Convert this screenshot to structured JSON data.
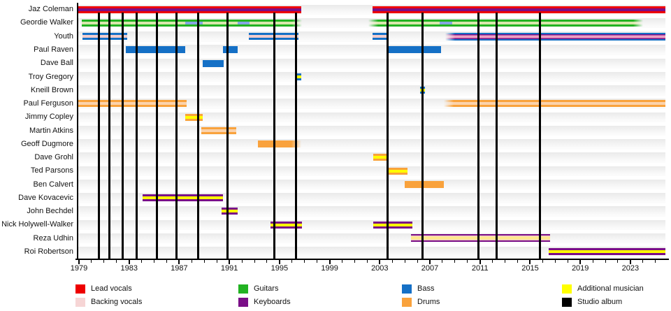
{
  "chart_data": {
    "type": "timeline",
    "subject": "Band members timeline",
    "axis": {
      "range": [
        1978.85,
        2025.8
      ],
      "major_ticks": [
        1979,
        1983,
        1987,
        1991,
        1995,
        1999,
        2003,
        2007,
        2011,
        2015,
        2019,
        2023
      ],
      "minor_tick_interval": 1
    },
    "legend": {
      "items": [
        {
          "key": "lead",
          "label": "Lead vocals",
          "color": "#ee0000"
        },
        {
          "key": "backing",
          "label": "Backing vocals",
          "color": "#f6d5d5"
        },
        {
          "key": "guitars",
          "label": "Guitars",
          "color": "#22b222"
        },
        {
          "key": "keyboards",
          "label": "Keyboards",
          "color": "#7a0e87"
        },
        {
          "key": "bass",
          "label": "Bass",
          "color": "#1570c6"
        },
        {
          "key": "drums",
          "label": "Drums",
          "color": "#f9a23c"
        },
        {
          "key": "additional",
          "label": "Additional musician",
          "color": "#ffff00"
        },
        {
          "key": "album",
          "label": "Studio album",
          "color": "#000000"
        }
      ]
    },
    "albums": [
      1980.6,
      1981.4,
      1982.5,
      1983.6,
      1985.2,
      1986.8,
      1988.5,
      1990.85,
      1994.6,
      1996.3,
      2003.6,
      2006.4,
      2010.85,
      2012.3,
      2015.8
    ],
    "members": [
      {
        "name": "Jaz Coleman",
        "segments": [
          {
            "start": 1978.85,
            "end": 1996.75,
            "roles": [
              "lead",
              "keyboards"
            ]
          },
          {
            "start": 2002.45,
            "end": 2025.8,
            "roles": [
              "lead",
              "keyboards"
            ]
          }
        ]
      },
      {
        "name": "Geordie Walker",
        "segments": [
          {
            "start": 1979.2,
            "end": 1996.8,
            "roles": [
              "guitars",
              "backing"
            ],
            "fade_right": true
          },
          {
            "start": 2002.1,
            "end": 2024.0,
            "roles": [
              "guitars",
              "backing"
            ],
            "fade_left": true,
            "fade_right": true
          }
        ],
        "overlays": [
          {
            "start": 1987.5,
            "end": 1988.9,
            "role": "bass"
          },
          {
            "start": 1991.65,
            "end": 1992.6,
            "role": "bass"
          },
          {
            "start": 2007.8,
            "end": 2008.8,
            "role": "bass"
          }
        ]
      },
      {
        "name": "Youth",
        "segments": [
          {
            "start": 1979.3,
            "end": 1982.85,
            "roles": [
              "bass",
              "backing"
            ]
          },
          {
            "start": 1992.55,
            "end": 1996.5,
            "roles": [
              "bass",
              "backing"
            ]
          },
          {
            "start": 2002.4,
            "end": 2003.65,
            "roles": [
              "bass",
              "backing"
            ]
          },
          {
            "start": 2008.2,
            "end": 2025.8,
            "roles": [
              "bass",
              "keyboards",
              "backing"
            ],
            "fade_left": true
          }
        ]
      },
      {
        "name": "Paul Raven",
        "segments": [
          {
            "start": 1982.75,
            "end": 1987.5,
            "roles": [
              "bass"
            ]
          },
          {
            "start": 1990.5,
            "end": 1991.65,
            "roles": [
              "bass"
            ]
          },
          {
            "start": 2003.6,
            "end": 2007.9,
            "roles": [
              "bass"
            ]
          }
        ]
      },
      {
        "name": "Dave Ball",
        "segments": [
          {
            "start": 1988.85,
            "end": 1990.55,
            "roles": [
              "bass"
            ]
          }
        ]
      },
      {
        "name": "Troy Gregory",
        "segments": [
          {
            "start": 1996.3,
            "end": 1996.75,
            "roles": [
              "bass",
              "additional"
            ]
          }
        ]
      },
      {
        "name": "Kneill Brown",
        "segments": [
          {
            "start": 2006.2,
            "end": 2006.6,
            "roles": [
              "bass",
              "additional"
            ]
          }
        ]
      },
      {
        "name": "Paul Ferguson",
        "segments": [
          {
            "start": 1978.9,
            "end": 1987.6,
            "roles": [
              "drums",
              "backing"
            ]
          },
          {
            "start": 2008.1,
            "end": 2025.8,
            "roles": [
              "drums",
              "backing"
            ],
            "fade_left": true
          }
        ]
      },
      {
        "name": "Jimmy Copley",
        "segments": [
          {
            "start": 1987.5,
            "end": 1988.85,
            "roles": [
              "drums",
              "additional"
            ]
          }
        ]
      },
      {
        "name": "Martin Atkins",
        "segments": [
          {
            "start": 1988.75,
            "end": 1991.55,
            "roles": [
              "drums",
              "backing"
            ]
          }
        ]
      },
      {
        "name": "Geoff Dugmore",
        "segments": [
          {
            "start": 1993.3,
            "end": 1996.75,
            "roles": [
              "drums"
            ],
            "fade_right": true
          }
        ]
      },
      {
        "name": "Dave Grohl",
        "segments": [
          {
            "start": 2002.5,
            "end": 2003.6,
            "roles": [
              "drums",
              "additional"
            ]
          }
        ]
      },
      {
        "name": "Ted Parsons",
        "segments": [
          {
            "start": 2003.65,
            "end": 2005.2,
            "roles": [
              "drums",
              "additional"
            ]
          }
        ]
      },
      {
        "name": "Ben Calvert",
        "segments": [
          {
            "start": 2005.0,
            "end": 2008.1,
            "roles": [
              "drums"
            ]
          }
        ]
      },
      {
        "name": "Dave Kovacevic",
        "segments": [
          {
            "start": 1984.1,
            "end": 1990.5,
            "roles": [
              "keyboards",
              "additional"
            ]
          }
        ]
      },
      {
        "name": "John Bechdel",
        "segments": [
          {
            "start": 1990.4,
            "end": 1991.65,
            "roles": [
              "keyboards",
              "additional"
            ]
          }
        ]
      },
      {
        "name": "Nick Holywell-Walker",
        "segments": [
          {
            "start": 1994.3,
            "end": 1996.8,
            "roles": [
              "keyboards",
              "additional"
            ]
          },
          {
            "start": 2002.5,
            "end": 2005.6,
            "roles": [
              "keyboards",
              "additional"
            ]
          }
        ]
      },
      {
        "name": "Reza Udhin",
        "segments": [
          {
            "start": 2005.5,
            "end": 2016.6,
            "roles": [
              "keyboards",
              "backing",
              "additional"
            ]
          }
        ]
      },
      {
        "name": "Roi Robertson",
        "segments": [
          {
            "start": 2016.5,
            "end": 2025.8,
            "roles": [
              "keyboards",
              "additional"
            ]
          }
        ]
      }
    ]
  }
}
